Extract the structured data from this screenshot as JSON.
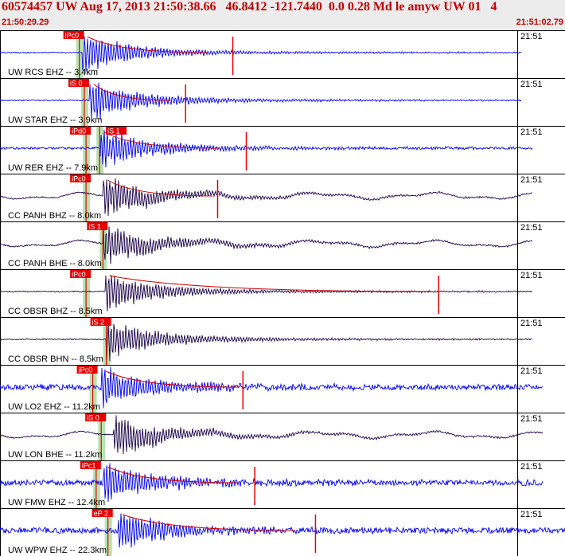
{
  "header": {
    "title": "60574457 UW Aug 17, 2013 21:50:38.66   46.8412 -121.7440  0.0 0.28 Md le amyw UW 01   4",
    "start_time": "21:50:29.29",
    "end_time": "21:51:02.79"
  },
  "colors": {
    "trace_blue": "#0000ee",
    "trace_dark": "#1a0048",
    "pick": "#e60000",
    "pick_zone": "#b6e3b0",
    "coda": "#cc0000",
    "grid": "#000000",
    "header_bg": "#ececec"
  },
  "chart_data": {
    "type": "line",
    "title": "60574457 UW Aug 17, 2013 21:50:38.66   46.8412 -121.7440  0.0 0.28 Md le amyw UW 01   4",
    "x_unit": "seconds after 21:50:29.29",
    "xlim": [
      0,
      33.5
    ],
    "traces": [
      {
        "label": "UW RCS EHZ -- 3.4km",
        "clock": "21:51",
        "color": "blue",
        "noise": "low",
        "signal_start": 4.9,
        "trace_end": 30.9,
        "picks": [
          {
            "label": "iPc0",
            "t": 4.7
          }
        ],
        "coda_end": 12.3,
        "spike": 13.8
      },
      {
        "label": "UW STAR EHZ -- 3.9km",
        "clock": "21:51",
        "color": "blue",
        "noise": "low",
        "signal_start": 5.3,
        "trace_end": 30.9,
        "picks": [
          {
            "label": "iS 0",
            "t": 5.0
          }
        ],
        "coda_end": 10.1,
        "spike": 11.0
      },
      {
        "label": "UW RER EHZ -- 7.9km",
        "clock": "21:51",
        "color": "blue",
        "noise": "mid",
        "signal_start": 5.9,
        "trace_end": 31.6,
        "picks": [
          {
            "label": "iPd0",
            "t": 5.1
          },
          {
            "label": "iS 1",
            "t": 5.9
          }
        ],
        "coda_end": 13.0,
        "spike": 14.6
      },
      {
        "label": "CC PANH BHZ -- 8.0km",
        "clock": "21:51",
        "color": "dark",
        "noise": "wavy",
        "signal_start": 6.1,
        "trace_end": 31.6,
        "picks": [
          {
            "label": "iPc0",
            "t": 5.1
          }
        ],
        "coda_end": 12.6,
        "spike": 12.9
      },
      {
        "label": "CC PANH BHE -- 8.0km",
        "clock": "21:51",
        "color": "dark",
        "noise": "wavy",
        "signal_start": 6.1,
        "trace_end": 31.6,
        "picks": [
          {
            "label": "iS 1",
            "t": 6.1
          }
        ],
        "coda_end": null,
        "spike": null
      },
      {
        "label": "CC OBSR BHZ -- 8.5km",
        "clock": "21:51",
        "color": "dark",
        "noise": "low",
        "signal_start": 6.2,
        "trace_end": 31.6,
        "picks": [
          {
            "label": "iPc0",
            "t": 5.1
          }
        ],
        "coda_end": 25.6,
        "spike": 26.0
      },
      {
        "label": "CC OBSR BHN -- 8.5km",
        "clock": "21:51",
        "color": "dark",
        "noise": "low",
        "signal_start": 6.3,
        "trace_end": 31.6,
        "picks": [
          {
            "label": "iS 2",
            "t": 6.3
          }
        ],
        "coda_end": null,
        "spike": null
      },
      {
        "label": "UW LO2 EHZ -- 11.2km",
        "clock": "21:51",
        "color": "blue",
        "noise": "high",
        "signal_start": 6.0,
        "trace_end": 32.2,
        "picks": [
          {
            "label": "iPc0",
            "t": 5.5
          }
        ],
        "coda_end": 14.2,
        "spike": 14.4
      },
      {
        "label": "UW LON BHE -- 11.2km",
        "clock": "21:51",
        "color": "dark",
        "noise": "wavy",
        "signal_start": 6.7,
        "trace_end": 32.2,
        "picks": [
          {
            "label": "iS 0",
            "t": 6.0
          }
        ],
        "coda_end": null,
        "spike": null
      },
      {
        "label": "UW FMW EHZ -- 12.4km",
        "clock": "21:51",
        "color": "blue",
        "noise": "high",
        "signal_start": 6.1,
        "trace_end": 32.2,
        "picks": [
          {
            "label": "iPc1",
            "t": 5.7
          }
        ],
        "coda_end": 14.1,
        "spike": 15.1
      },
      {
        "label": "UW WPW EHZ -- 22.3km",
        "clock": "21:51",
        "color": "blue",
        "noise": "high",
        "signal_start": 7.0,
        "trace_end": 33.5,
        "picks": [
          {
            "label": "eP 2",
            "t": 6.4
          }
        ],
        "coda_end": 17.5,
        "spike": 18.7
      }
    ]
  }
}
